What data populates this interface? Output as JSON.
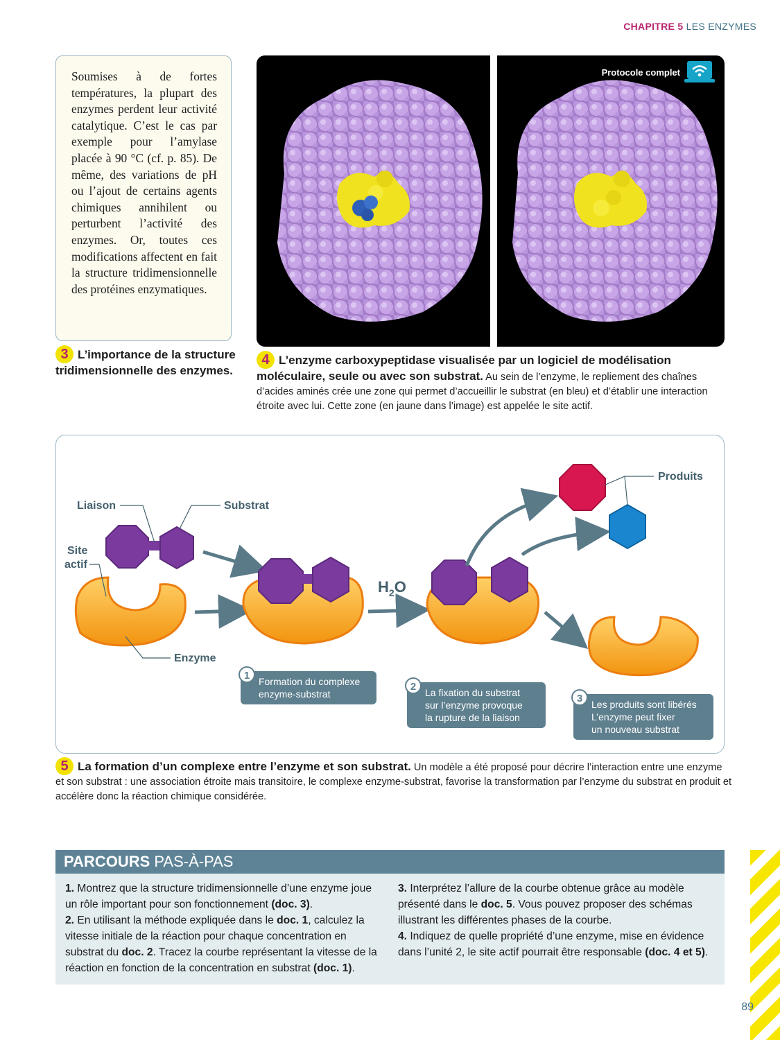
{
  "header": {
    "chapter": "CHAPITRE 5",
    "title": "LES ENZYMES"
  },
  "doc3": {
    "text": "Soumises à de fortes températures, la plupart des enzymes perdent leur activité catalytique. C’est le cas par exemple pour l’amylase placée à 90 °C (cf. p. 85). De même, des variations de pH ou l’ajout de certains agents chimiques annihilent ou perturbent l’activité des enzymes. Or, toutes ces modifications affectent en fait la structure tridimensionnelle des protéines enzymatiques.",
    "number": "3",
    "caption_title": "L’importance de la structure tridimensionnelle des enzymes."
  },
  "doc4": {
    "number": "4",
    "protocol_label": "Protocole complet",
    "caption_title": "L’enzyme carboxypeptidase visualisée par un logiciel de modélisation moléculaire, seule ou avec son substrat.",
    "caption_text": "Au sein de l’enzyme, le repliement des chaînes d’acides aminés crée une zone qui permet d’accueillir le substrat (en bleu) et d’établir une interaction étroite avec lui. Cette zone (en jaune dans l’image) est appelée le site actif.",
    "colors": {
      "protein": "#b48fd8",
      "active_site": "#f0e21e",
      "substrate": "#2f5fb8"
    }
  },
  "doc5": {
    "number": "5",
    "labels": {
      "liaison": "Liaison",
      "substrat": "Substrat",
      "site": "Site",
      "actif": "actif",
      "enzyme": "Enzyme",
      "produits": "Produits",
      "h2o": "H",
      "h2o_sub": "2",
      "h2o_o": "O"
    },
    "steps": [
      {
        "num": "1",
        "line1": "Formation du complexe",
        "line2": "enzyme-substrat",
        "line3": ""
      },
      {
        "num": "2",
        "line1": "La fixation du substrat",
        "line2": "sur l’enzyme provoque",
        "line3": "la rupture de la liaison"
      },
      {
        "num": "3",
        "line1": "Les produits sont libérés",
        "line2": "L’enzyme peut fixer",
        "line3": "un nouveau substrat"
      }
    ],
    "caption_title": "La formation d’un complexe entre l’enzyme et son substrat.",
    "caption_text": "Un modèle a été proposé pour décrire l’interaction entre une enzyme et son substrat : une association étroite mais transitoire, le complexe enzyme-substrat, favorise la transformation par l’enzyme du substrat en produit et accélère donc la réaction chimique considérée.",
    "colors": {
      "enzyme": "#f7a21b",
      "substrate": "#7a3a9e",
      "product_red": "#d8164f",
      "product_blue": "#1a86cf",
      "arrow": "#5a7a88"
    }
  },
  "parcours": {
    "title_bold": "PARCOURS",
    "title_rest": " PAS-À-PAS",
    "q1": {
      "n": "1.",
      "t1": " Montrez que la structure tridimensionnelle d’une enzyme joue un rôle important pour son fonctionnement ",
      "ref": "(doc. 3)",
      "end": "."
    },
    "q2": {
      "n": "2.",
      "t1": " En utilisant la méthode expliquée dans le ",
      "ref1": "doc. 1",
      "t2": ", calculez la vitesse initiale de la réaction pour chaque concentration en substrat du ",
      "ref2": "doc. 2",
      "t3": ". Tracez la courbe représentant la vitesse de la réaction en fonction de la concentration en substrat ",
      "ref3": "(doc. 1)",
      "end": "."
    },
    "q3": {
      "n": "3.",
      "t1": " Interprétez l’allure de la courbe obtenue grâce au modèle présenté dans le ",
      "ref": "doc. 5",
      "t2": ". Vous pouvez proposer des schémas illustrant les différentes phases de la courbe."
    },
    "q4": {
      "n": "4.",
      "t1": " Indiquez de quelle propriété d’une enzyme, mise en évidence dans l’unité 2, le site actif pourrait être responsable ",
      "ref": "(doc. 4 et 5)",
      "end": "."
    }
  },
  "page_number": "89"
}
